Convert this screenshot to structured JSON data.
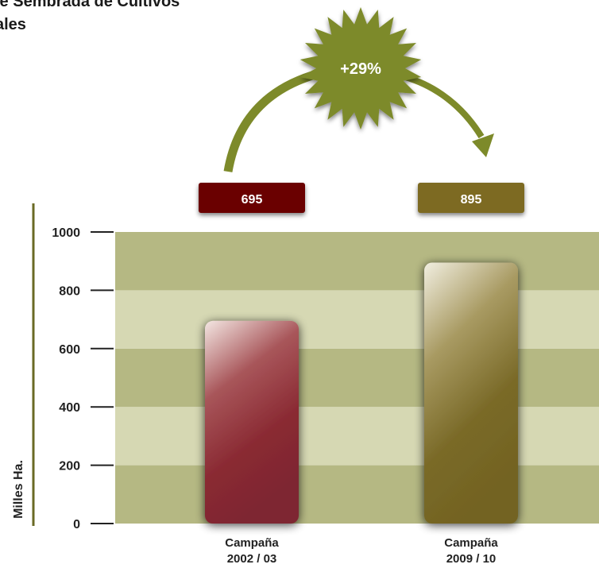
{
  "title_lines": [
    "le Sembrada de Cultivos",
    "ales"
  ],
  "chart_data": {
    "type": "bar",
    "categories": [
      [
        "Campaña",
        "2002 / 03"
      ],
      [
        "Campaña",
        "2009 / 10"
      ]
    ],
    "values": [
      695,
      895
    ],
    "value_labels": [
      "695",
      "895"
    ],
    "ylabel": "Milles Ha.",
    "ylim": [
      0,
      1000
    ],
    "yticks": [
      0,
      200,
      400,
      600,
      800,
      1000
    ],
    "change_label": "+29%",
    "grid": "alternating horizontal bands",
    "colors": {
      "bar_1": "#8a2a33",
      "bar_2": "#7a6a28",
      "box_1": "#6b0000",
      "box_2": "#7d6a20",
      "band_dark": "#b5b883",
      "band_light": "#d6d8b3",
      "accent": "#7d8a2a",
      "axis": "#6a6a24"
    }
  }
}
